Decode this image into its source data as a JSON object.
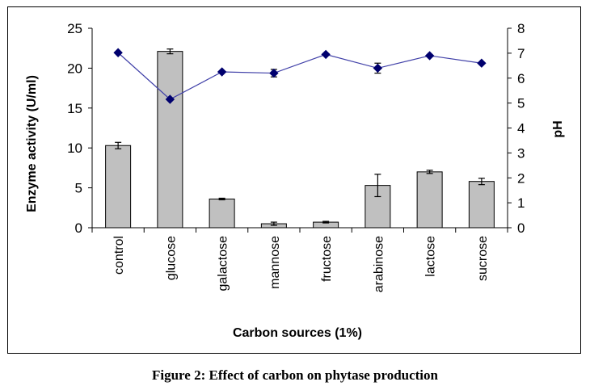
{
  "chart_data": {
    "type": "bar+line",
    "categories": [
      "control",
      "glucose",
      "galactose",
      "mannose",
      "fructose",
      "arabinose",
      "lactose",
      "sucrose"
    ],
    "series": [
      {
        "name": "Enzyme activity",
        "type": "bar",
        "axis": "left",
        "values": [
          10.3,
          22.1,
          3.6,
          0.5,
          0.7,
          5.3,
          7.0,
          5.8
        ],
        "errors": [
          0.4,
          0.3,
          0.1,
          0.2,
          0.1,
          1.4,
          0.2,
          0.4
        ],
        "color": "#c0c0c0"
      },
      {
        "name": "pH",
        "type": "line",
        "axis": "right",
        "values": [
          7.02,
          5.15,
          6.25,
          6.2,
          6.95,
          6.4,
          6.9,
          6.6
        ],
        "errors": [
          0.0,
          0.0,
          0.0,
          0.15,
          0.0,
          0.2,
          0.0,
          0.0
        ],
        "color": "#4040a8",
        "marker_color": "#00006e"
      }
    ],
    "ylabel": "Enzyme activity  (U/ml)",
    "y2label": "pH",
    "xlabel": "Carbon sources  (1%)",
    "ylim": [
      0,
      25
    ],
    "yticks": [
      "0",
      "5",
      "10",
      "15",
      "20",
      "25"
    ],
    "y2lim": [
      0,
      8
    ],
    "y2ticks": [
      "0",
      "1",
      "2",
      "3",
      "4",
      "5",
      "6",
      "7",
      "8"
    ],
    "grid": false,
    "legend": "none"
  },
  "caption": "Figure 2: Effect of carbon on phytase production"
}
